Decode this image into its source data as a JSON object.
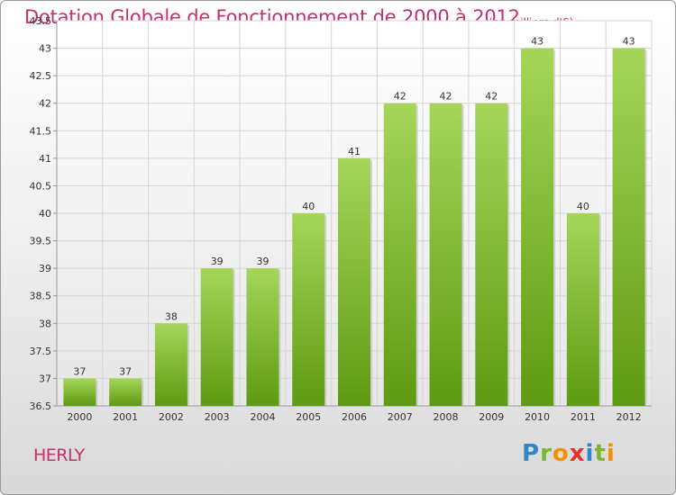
{
  "chart_data": {
    "type": "bar",
    "title": "Dotation Globale de Fonctionnement de 2000 à 2012",
    "subtitle": "(en milliers d'€)",
    "categories": [
      "2000",
      "2001",
      "2002",
      "2003",
      "2004",
      "2005",
      "2006",
      "2007",
      "2008",
      "2009",
      "2010",
      "2011",
      "2012"
    ],
    "values": [
      37,
      37,
      38,
      39,
      39,
      40,
      41,
      42,
      42,
      42,
      43,
      40,
      43
    ],
    "data_labels": [
      "37",
      "37",
      "38",
      "39",
      "39",
      "40",
      "41",
      "42",
      "42",
      "42",
      "43",
      "40",
      "43"
    ],
    "ylim": [
      36.5,
      43.5
    ],
    "yticks": [
      36.5,
      37,
      37.5,
      38,
      38.5,
      39,
      39.5,
      40,
      40.5,
      41,
      41.5,
      42,
      42.5,
      43,
      43.5
    ],
    "ytick_labels": [
      "36.5",
      "37",
      "37.5",
      "38",
      "38.5",
      "39",
      "39.5",
      "40",
      "40.5",
      "41",
      "41.5",
      "42",
      "42.5",
      "43",
      "43.5"
    ],
    "grid": true,
    "legend": "none",
    "colors": {
      "bar_top": "#a5d65a",
      "bar_bottom": "#5e9a12",
      "text_accent": "#c4306a",
      "grid": "#d6d6d6"
    }
  },
  "commune": "HERLY",
  "brand": {
    "letters": [
      "P",
      "r",
      "o",
      "x",
      "i",
      "t",
      "i"
    ],
    "colors": [
      "#2f86c8",
      "#7cb530",
      "#f39200",
      "#e2342b",
      "#2f86c8",
      "#7cb530",
      "#f39200"
    ]
  }
}
